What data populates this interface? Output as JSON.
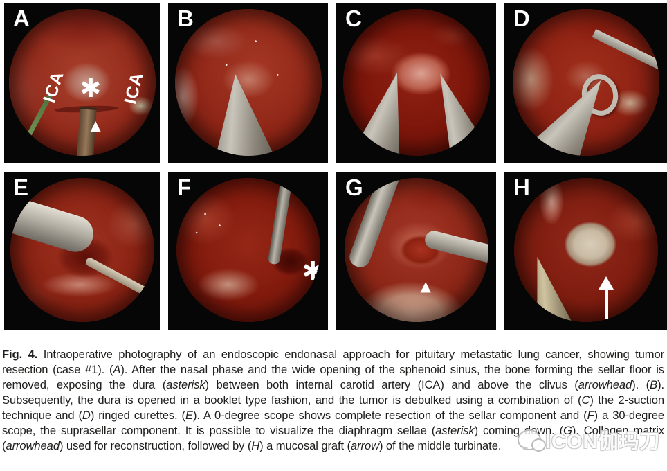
{
  "figure": {
    "panels": [
      {
        "letter": "A",
        "annotations": {
          "ica_left": "ICA",
          "asterisk": "✱",
          "ica_right": "ICA",
          "arrowhead": "▲"
        }
      },
      {
        "letter": "B",
        "annotations": {}
      },
      {
        "letter": "C",
        "annotations": {}
      },
      {
        "letter": "D",
        "annotations": {}
      },
      {
        "letter": "E",
        "annotations": {}
      },
      {
        "letter": "F",
        "annotations": {
          "asterisk": "✱"
        }
      },
      {
        "letter": "G",
        "annotations": {
          "arrowhead": "▲"
        }
      },
      {
        "letter": "H",
        "annotations": {
          "arrow": "up-arrow"
        }
      }
    ]
  },
  "caption": {
    "segments": [
      {
        "text": "Fig. 4.",
        "style": "bold"
      },
      {
        "text": " Intraoperative photography of an endoscopic endonasal approach for pituitary metastatic lung cancer, showing tumor resection (case #1). (",
        "style": "normal"
      },
      {
        "text": "A",
        "style": "italic"
      },
      {
        "text": "). After the nasal phase and the wide opening of the sphenoid sinus, the bone forming the sellar floor is removed, exposing the dura (",
        "style": "normal"
      },
      {
        "text": "asterisk",
        "style": "italic"
      },
      {
        "text": ") between both internal carotid artery (ICA) and above the clivus (",
        "style": "normal"
      },
      {
        "text": "arrowhead",
        "style": "italic"
      },
      {
        "text": "). (",
        "style": "normal"
      },
      {
        "text": "B",
        "style": "italic"
      },
      {
        "text": "). Subsequently, the dura is opened in a booklet type fashion, and the tumor is debulked using a combination of (",
        "style": "normal"
      },
      {
        "text": "C",
        "style": "italic"
      },
      {
        "text": ") the 2-suction technique and (",
        "style": "normal"
      },
      {
        "text": "D",
        "style": "italic"
      },
      {
        "text": ") ringed curettes. (",
        "style": "normal"
      },
      {
        "text": "E",
        "style": "italic"
      },
      {
        "text": "). A 0-degree scope shows complete resection of the sellar component and (",
        "style": "normal"
      },
      {
        "text": "F",
        "style": "italic"
      },
      {
        "text": ") a 30-degree scope, the suprasellar component. It is possible to visualize the diaphragm sellae (",
        "style": "normal"
      },
      {
        "text": "asterisk",
        "style": "italic"
      },
      {
        "text": ") coming down. (",
        "style": "normal"
      },
      {
        "text": "G",
        "style": "italic"
      },
      {
        "text": "). Collagen matrix (",
        "style": "normal"
      },
      {
        "text": "arrowhead",
        "style": "italic"
      },
      {
        "text": ") used for reconstruction, followed by (",
        "style": "normal"
      },
      {
        "text": "H",
        "style": "italic"
      },
      {
        "text": ") a mucosal graft (",
        "style": "normal"
      },
      {
        "text": "arrow",
        "style": "italic"
      },
      {
        "text": ") of the middle turbinate.",
        "style": "normal"
      }
    ]
  },
  "watermark": {
    "text": "ICON伽玛刀"
  },
  "colors": {
    "tissue_red": "#8c2214",
    "instrument_gray": "#a8a399",
    "annotation_white": "#ffffff",
    "caption_text": "#1d1d1b",
    "panel_background": "#060606",
    "page_background": "#ffffff"
  }
}
